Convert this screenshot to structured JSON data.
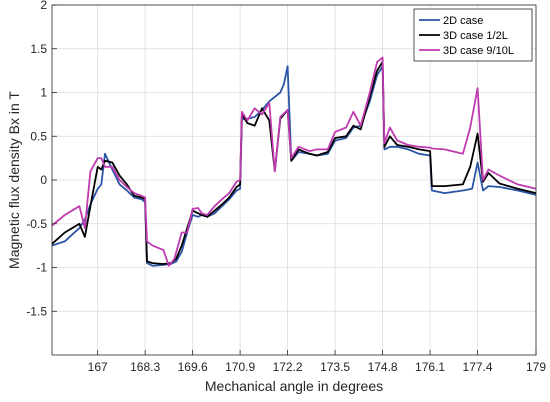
{
  "chart_data": {
    "type": "line",
    "title": "",
    "xlabel": "Mechanical angle in degrees",
    "ylabel": "Magnetic flux density Bx in T",
    "xlim": [
      165.75,
      179.0
    ],
    "ylim": [
      -2.0,
      2.0
    ],
    "xticks": [
      167,
      168.3,
      169.6,
      170.9,
      172.2,
      173.5,
      174.8,
      176.1,
      177.4,
      179
    ],
    "xtick_labels": [
      "167",
      "168.3",
      "169.6",
      "170.9",
      "172.2",
      "173.5",
      "174.8",
      "176.1",
      "177.4",
      "179"
    ],
    "yticks": [
      -1.5,
      -1,
      -0.5,
      0,
      0.5,
      1,
      1.5,
      2
    ],
    "ytick_labels": [
      "-1.5",
      "-1",
      "-0.5",
      "0",
      "0.5",
      "1",
      "1.5",
      "2"
    ],
    "grid": true,
    "legend_position": "top-right",
    "series": [
      {
        "name": "2D case",
        "color": "#2b54a6",
        "x": [
          165.75,
          166.1,
          166.5,
          166.65,
          166.8,
          167.0,
          167.1,
          167.2,
          167.4,
          167.6,
          167.8,
          168.0,
          168.2,
          168.3,
          168.35,
          168.5,
          168.8,
          169.0,
          169.15,
          169.3,
          169.45,
          169.6,
          169.75,
          169.85,
          170.0,
          170.2,
          170.4,
          170.6,
          170.8,
          170.9,
          170.95,
          171.1,
          171.3,
          171.5,
          171.7,
          172.0,
          172.1,
          172.2,
          172.3,
          172.5,
          172.8,
          173.0,
          173.3,
          173.5,
          173.8,
          174.0,
          174.2,
          174.45,
          174.65,
          174.8,
          174.85,
          175.0,
          175.2,
          175.5,
          175.8,
          176.1,
          176.15,
          176.5,
          177.0,
          177.25,
          177.4,
          177.55,
          177.7,
          178.0,
          178.5,
          179.0
        ],
        "y": [
          -0.75,
          -0.7,
          -0.55,
          -0.45,
          -0.28,
          -0.1,
          -0.05,
          0.3,
          0.12,
          -0.05,
          -0.12,
          -0.2,
          -0.22,
          -0.25,
          -0.95,
          -0.98,
          -0.97,
          -0.96,
          -0.93,
          -0.82,
          -0.6,
          -0.4,
          -0.42,
          -0.4,
          -0.42,
          -0.38,
          -0.3,
          -0.22,
          -0.12,
          -0.1,
          0.7,
          0.7,
          0.72,
          0.8,
          0.9,
          1.0,
          1.1,
          1.3,
          0.22,
          0.32,
          0.3,
          0.28,
          0.3,
          0.45,
          0.48,
          0.6,
          0.62,
          0.9,
          1.2,
          1.3,
          0.35,
          0.38,
          0.38,
          0.35,
          0.3,
          0.28,
          -0.12,
          -0.15,
          -0.12,
          -0.1,
          0.2,
          -0.12,
          -0.07,
          -0.08,
          -0.12,
          -0.17
        ]
      },
      {
        "name": "3D case 1/2L",
        "color": "#000000",
        "x": [
          165.75,
          166.1,
          166.5,
          166.65,
          166.8,
          167.0,
          167.1,
          167.2,
          167.4,
          167.6,
          167.8,
          168.0,
          168.2,
          168.3,
          168.35,
          168.5,
          168.8,
          169.0,
          169.15,
          169.3,
          169.45,
          169.6,
          169.75,
          169.85,
          170.0,
          170.2,
          170.4,
          170.6,
          170.8,
          170.9,
          170.95,
          171.1,
          171.3,
          171.5,
          171.7,
          171.85,
          172.0,
          172.2,
          172.3,
          172.5,
          172.8,
          173.0,
          173.3,
          173.5,
          173.8,
          174.0,
          174.2,
          174.45,
          174.65,
          174.8,
          174.85,
          175.0,
          175.2,
          175.5,
          175.8,
          176.1,
          176.15,
          176.5,
          177.0,
          177.2,
          177.4,
          177.55,
          177.7,
          178.0,
          178.5,
          179.0
        ],
        "y": [
          -0.73,
          -0.6,
          -0.5,
          -0.65,
          -0.3,
          0.15,
          0.12,
          0.22,
          0.2,
          0.05,
          -0.05,
          -0.18,
          -0.2,
          -0.22,
          -0.93,
          -0.95,
          -0.96,
          -0.95,
          -0.9,
          -0.75,
          -0.55,
          -0.35,
          -0.38,
          -0.4,
          -0.42,
          -0.35,
          -0.28,
          -0.2,
          -0.08,
          -0.05,
          0.75,
          0.65,
          0.62,
          0.82,
          0.68,
          0.1,
          0.7,
          0.8,
          0.22,
          0.35,
          0.3,
          0.28,
          0.32,
          0.48,
          0.5,
          0.62,
          0.58,
          0.95,
          1.25,
          1.35,
          0.38,
          0.5,
          0.4,
          0.38,
          0.35,
          0.33,
          -0.07,
          -0.07,
          -0.05,
          0.15,
          0.53,
          -0.02,
          0.08,
          -0.04,
          -0.1,
          -0.15
        ]
      },
      {
        "name": "3D case 9/10L",
        "color": "#c03ab0",
        "x": [
          165.75,
          166.1,
          166.5,
          166.65,
          166.8,
          167.0,
          167.1,
          167.2,
          167.4,
          167.6,
          167.8,
          168.0,
          168.2,
          168.3,
          168.35,
          168.5,
          168.8,
          168.95,
          169.1,
          169.3,
          169.45,
          169.6,
          169.75,
          169.85,
          170.0,
          170.2,
          170.4,
          170.6,
          170.8,
          170.9,
          170.95,
          171.1,
          171.3,
          171.5,
          171.7,
          171.85,
          172.0,
          172.2,
          172.3,
          172.5,
          172.8,
          173.0,
          173.3,
          173.5,
          173.8,
          174.0,
          174.2,
          174.45,
          174.65,
          174.8,
          174.85,
          175.0,
          175.2,
          175.5,
          175.8,
          176.1,
          176.15,
          176.5,
          177.0,
          177.2,
          177.4,
          177.55,
          177.7,
          178.0,
          178.5,
          179.0
        ],
        "y": [
          -0.52,
          -0.4,
          -0.3,
          -0.55,
          0.1,
          0.25,
          0.25,
          0.15,
          0.15,
          0.0,
          -0.08,
          -0.15,
          -0.18,
          -0.2,
          -0.7,
          -0.75,
          -0.8,
          -0.98,
          -0.9,
          -0.6,
          -0.6,
          -0.33,
          -0.32,
          -0.38,
          -0.4,
          -0.3,
          -0.22,
          -0.15,
          -0.02,
          0.0,
          0.78,
          0.68,
          0.82,
          0.75,
          0.88,
          0.1,
          0.72,
          0.8,
          0.25,
          0.38,
          0.33,
          0.35,
          0.35,
          0.55,
          0.6,
          0.78,
          0.62,
          1.0,
          1.35,
          1.4,
          0.42,
          0.6,
          0.45,
          0.4,
          0.38,
          0.37,
          0.36,
          0.35,
          0.3,
          0.6,
          1.05,
          0.0,
          0.12,
          0.05,
          -0.05,
          -0.1
        ]
      }
    ]
  }
}
